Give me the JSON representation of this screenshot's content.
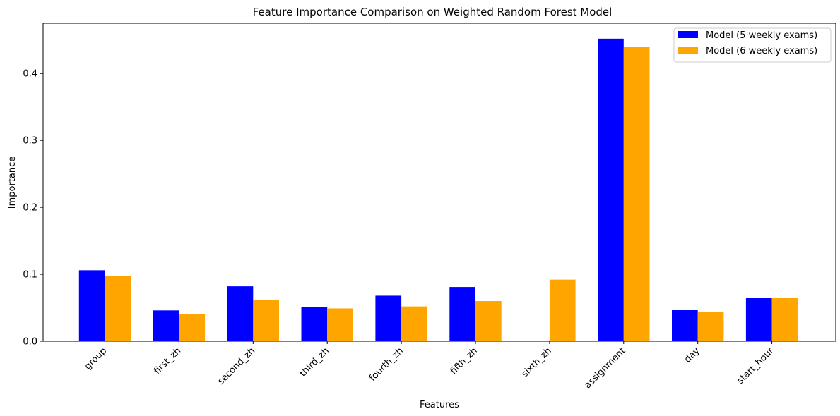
{
  "chart_data": {
    "type": "bar",
    "title": "Feature Importance Comparison on Weighted Random Forest Model",
    "xlabel": "Features",
    "ylabel": "Importance",
    "categories": [
      "group",
      "first_zh",
      "second_zh",
      "third_zh",
      "fourth_zh",
      "fifth_zh",
      "sixth_zh",
      "assignment",
      "day",
      "start_hour"
    ],
    "series": [
      {
        "name": "Model (5 weekly exams)",
        "color": "#0000ff",
        "values": [
          0.106,
          0.046,
          0.082,
          0.051,
          0.068,
          0.081,
          null,
          0.452,
          0.047,
          0.065
        ]
      },
      {
        "name": "Model (6 weekly exams)",
        "color": "#ffa500",
        "values": [
          0.097,
          0.04,
          0.062,
          0.049,
          0.052,
          0.06,
          0.092,
          0.44,
          0.044,
          0.065
        ]
      }
    ],
    "ylim": [
      0,
      0.475
    ],
    "yticks": [
      0.0,
      0.1,
      0.2,
      0.3,
      0.4
    ],
    "ytick_labels": [
      "0.0",
      "0.1",
      "0.2",
      "0.3",
      "0.4"
    ],
    "grid": false,
    "legend_position": "top-right",
    "xtick_rotation": 45
  }
}
